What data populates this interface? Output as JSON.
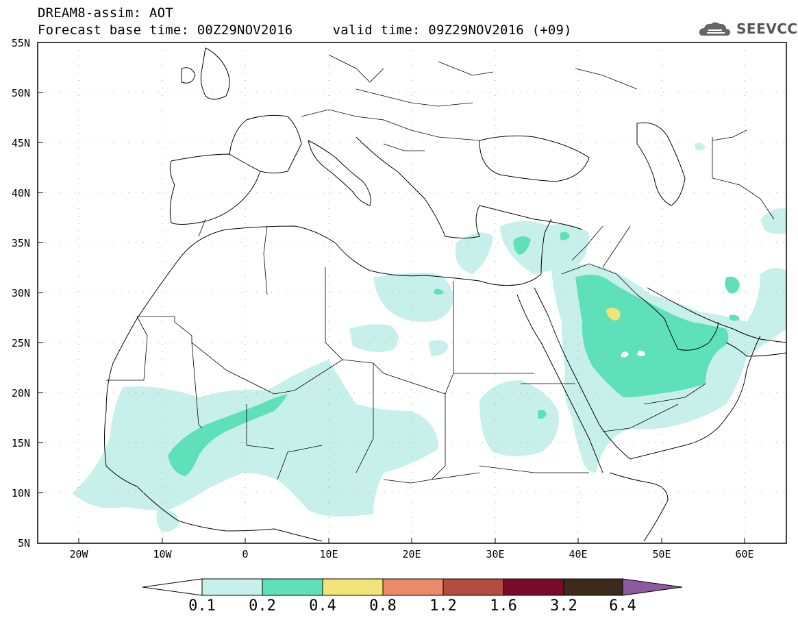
{
  "header": {
    "line1": "DREAM8-assim: AOT",
    "line2": "Forecast base time: 00Z29NOV2016     valid time: 09Z29NOV2016 (+09)"
  },
  "logo": {
    "text": "SEEVCCC",
    "icon": "cloud-icon"
  },
  "map": {
    "projection": "latlon",
    "lon_range": [
      -25,
      65
    ],
    "lat_range": [
      5,
      55
    ],
    "lat_labels": [
      "55N",
      "50N",
      "45N",
      "40N",
      "35N",
      "30N",
      "25N",
      "20N",
      "15N",
      "10N",
      "5N"
    ],
    "lon_labels": [
      "20W",
      "10W",
      "0",
      "10E",
      "20E",
      "30E",
      "40E",
      "50E",
      "60E"
    ],
    "grid": "dotted"
  },
  "colorbar": {
    "labels": [
      "0.1",
      "0.2",
      "0.4",
      "0.8",
      "1.2",
      "1.6",
      "3.2",
      "6.4"
    ],
    "colors": [
      "#c7f0ea",
      "#5ee0b8",
      "#f2e47a",
      "#eb8a68",
      "#b24c3e",
      "#7a0a2a",
      "#3d2a1a",
      "#8c5aa0"
    ]
  }
}
